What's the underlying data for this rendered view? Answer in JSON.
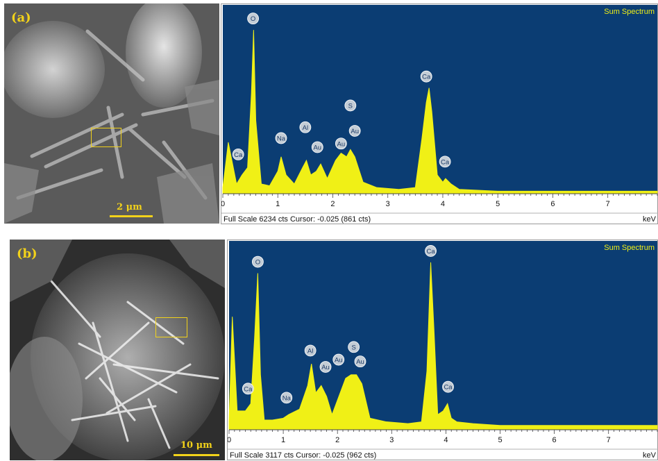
{
  "panels": [
    {
      "label": "(a)",
      "scale_bar": "2 μm",
      "spectrum_title": "Sum Spectrum",
      "footer": "Full Scale 6234 cts Cursor: -0.025  (861 cts)",
      "unit": "keV",
      "ticks": [
        "0",
        "1",
        "2",
        "3",
        "4",
        "5",
        "6",
        "7"
      ]
    },
    {
      "label": "(b)",
      "scale_bar": "10 μm",
      "spectrum_title": "Sum Spectrum",
      "footer": "Full Scale 3117 cts Cursor: -0.025  (962 cts)",
      "unit": "keV",
      "ticks": [
        "0",
        "1",
        "2",
        "3",
        "4",
        "5",
        "6",
        "7"
      ]
    }
  ],
  "chart_data": [
    {
      "type": "area",
      "title": "Sum Spectrum",
      "xlabel": "keV",
      "full_scale_cts": 6234,
      "xlim": [
        0,
        8
      ],
      "ylim": [
        0,
        1
      ],
      "colors": {
        "background": "#0b3d73",
        "fill": "#f0f016"
      },
      "x": [
        0,
        0.1,
        0.25,
        0.35,
        0.45,
        0.52,
        0.56,
        0.6,
        0.7,
        0.85,
        1.0,
        1.06,
        1.15,
        1.3,
        1.45,
        1.52,
        1.6,
        1.7,
        1.78,
        1.9,
        2.05,
        2.15,
        2.25,
        2.32,
        2.4,
        2.55,
        2.8,
        3.2,
        3.5,
        3.62,
        3.7,
        3.75,
        3.8,
        3.9,
        4.0,
        4.05,
        4.15,
        4.3,
        5,
        6,
        7,
        8
      ],
      "y": [
        0.03,
        0.28,
        0.05,
        0.1,
        0.14,
        0.55,
        0.9,
        0.4,
        0.05,
        0.04,
        0.12,
        0.2,
        0.1,
        0.05,
        0.14,
        0.18,
        0.1,
        0.12,
        0.16,
        0.08,
        0.18,
        0.22,
        0.2,
        0.24,
        0.2,
        0.06,
        0.03,
        0.02,
        0.03,
        0.3,
        0.5,
        0.58,
        0.45,
        0.1,
        0.06,
        0.08,
        0.05,
        0.02,
        0.01,
        0.01,
        0.01,
        0.01
      ],
      "annotations": [
        {
          "text": "O",
          "x": 0.55,
          "y": 0.94
        },
        {
          "text": "Ca",
          "x": 0.28,
          "y": 0.19
        },
        {
          "text": "Na",
          "x": 1.06,
          "y": 0.28
        },
        {
          "text": "Al",
          "x": 1.5,
          "y": 0.34
        },
        {
          "text": "Au",
          "x": 1.72,
          "y": 0.23
        },
        {
          "text": "Au",
          "x": 2.15,
          "y": 0.25
        },
        {
          "text": "S",
          "x": 2.32,
          "y": 0.46
        },
        {
          "text": "Au",
          "x": 2.4,
          "y": 0.32
        },
        {
          "text": "Ca",
          "x": 3.7,
          "y": 0.62
        },
        {
          "text": "Ca",
          "x": 4.04,
          "y": 0.15
        }
      ]
    },
    {
      "type": "area",
      "title": "Sum Spectrum",
      "xlabel": "keV",
      "full_scale_cts": 3117,
      "xlim": [
        0,
        8
      ],
      "ylim": [
        0,
        1
      ],
      "colors": {
        "background": "#0b3d73",
        "fill": "#f0f016"
      },
      "x": [
        0,
        0.06,
        0.15,
        0.3,
        0.4,
        0.47,
        0.53,
        0.58,
        0.65,
        0.8,
        1.0,
        1.1,
        1.3,
        1.45,
        1.52,
        1.6,
        1.7,
        1.8,
        1.9,
        2.05,
        2.15,
        2.25,
        2.35,
        2.45,
        2.6,
        2.9,
        3.3,
        3.55,
        3.65,
        3.72,
        3.78,
        3.85,
        3.95,
        4.03,
        4.1,
        4.2,
        4.5,
        5,
        6,
        7,
        8
      ],
      "y": [
        0.04,
        0.62,
        0.1,
        0.1,
        0.14,
        0.5,
        0.86,
        0.3,
        0.05,
        0.05,
        0.06,
        0.08,
        0.11,
        0.24,
        0.36,
        0.2,
        0.24,
        0.18,
        0.08,
        0.2,
        0.28,
        0.3,
        0.3,
        0.25,
        0.06,
        0.04,
        0.03,
        0.04,
        0.32,
        0.92,
        0.55,
        0.08,
        0.1,
        0.14,
        0.06,
        0.04,
        0.03,
        0.02,
        0.02,
        0.02,
        0.02
      ],
      "annotations": [
        {
          "text": "O",
          "x": 0.53,
          "y": 0.9
        },
        {
          "text": "Ca",
          "x": 0.35,
          "y": 0.2
        },
        {
          "text": "Na",
          "x": 1.06,
          "y": 0.15
        },
        {
          "text": "Al",
          "x": 1.5,
          "y": 0.41
        },
        {
          "text": "Au",
          "x": 1.78,
          "y": 0.32
        },
        {
          "text": "Au",
          "x": 2.02,
          "y": 0.36
        },
        {
          "text": "S",
          "x": 2.3,
          "y": 0.43
        },
        {
          "text": "Au",
          "x": 2.42,
          "y": 0.35
        },
        {
          "text": "Ca",
          "x": 3.72,
          "y": 0.96
        },
        {
          "text": "Ca",
          "x": 4.04,
          "y": 0.21
        }
      ]
    }
  ]
}
